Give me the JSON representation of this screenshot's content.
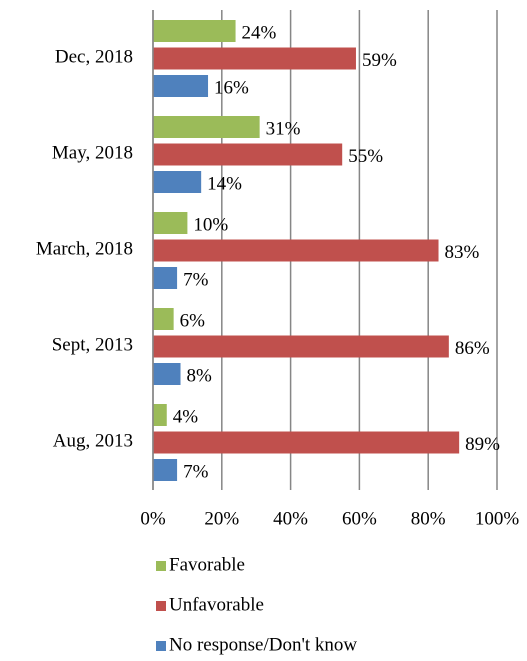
{
  "chart_data": {
    "type": "barh",
    "categories": [
      "Dec, 2018",
      "May, 2018",
      "March, 2018",
      "Sept, 2013",
      "Aug, 2013"
    ],
    "series": [
      {
        "name": "Favorable",
        "color": "#9bbb59",
        "values": [
          24,
          31,
          10,
          6,
          4
        ],
        "value_labels": [
          "24%",
          "31%",
          "10%",
          "6%",
          "4%"
        ]
      },
      {
        "name": "Unfavorable",
        "color": "#c0504d",
        "values": [
          59,
          55,
          83,
          86,
          89
        ],
        "value_labels": [
          "59%",
          "55%",
          "83%",
          "86%",
          "89%"
        ]
      },
      {
        "name": "No response/Don't know",
        "color": "#4f81bd",
        "values": [
          16,
          14,
          7,
          8,
          7
        ],
        "value_labels": [
          "16%",
          "14%",
          "7%",
          "8%",
          "7%"
        ]
      }
    ],
    "xlim": [
      0,
      100
    ],
    "xticks": [
      {
        "value": 0,
        "label": "0%"
      },
      {
        "value": 20,
        "label": "20%"
      },
      {
        "value": 40,
        "label": "40%"
      },
      {
        "value": 60,
        "label": "60%"
      },
      {
        "value": 80,
        "label": "80%"
      },
      {
        "value": 100,
        "label": "100%"
      }
    ],
    "grid": true,
    "legend": "bottom"
  }
}
